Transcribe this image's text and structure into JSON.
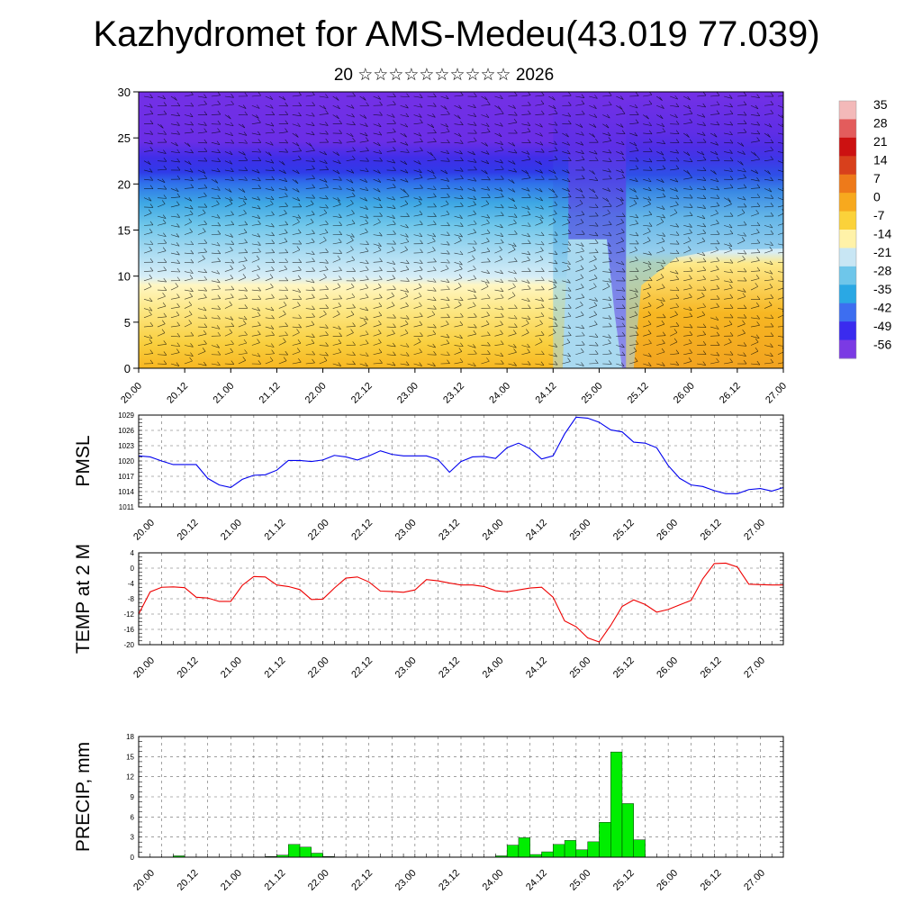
{
  "title": "Kazhydromet for AMS-Medeu(43.019 77.039)",
  "subtitle": "20 ☆☆☆☆☆☆☆☆☆☆ 2026",
  "time_labels": [
    "20.00",
    "20.12",
    "21.00",
    "21.12",
    "22.00",
    "22.12",
    "23.00",
    "23.12",
    "24.00",
    "24.12",
    "25.00",
    "25.12",
    "26.00",
    "26.12",
    "27.00"
  ],
  "colorbar": {
    "labels": [
      "35",
      "28",
      "21",
      "14",
      "7",
      "0",
      "-7",
      "-14",
      "-21",
      "-28",
      "-35",
      "-42",
      "-49",
      "-56"
    ],
    "colors": [
      "#f3b9b9",
      "#e35c5c",
      "#cc1111",
      "#d8401c",
      "#ee7a1a",
      "#f7a91e",
      "#fbd23a",
      "#fff2a8",
      "#c8e6f4",
      "#6ec6ea",
      "#2aa8e4",
      "#3d6ef0",
      "#3a2bef",
      "#7b3ae4"
    ]
  },
  "chart_data": [
    {
      "type": "heatmap",
      "name": "vertical cross-section",
      "ylim": [
        0,
        30
      ],
      "yticks": [
        0,
        5,
        10,
        15,
        20,
        25,
        30
      ],
      "x_range_hours": [
        0,
        168
      ],
      "legend": "right",
      "bands": [
        {
          "level": "0-9 (hours 0-112)",
          "value": 0
        },
        {
          "level": "9-12",
          "value": -14
        },
        {
          "level": "12-16",
          "value": -21
        },
        {
          "level": "16-20",
          "value": -35
        },
        {
          "level": "20-24",
          "value": -49
        },
        {
          "level": "24-30",
          "value": -56
        }
      ]
    },
    {
      "type": "line",
      "ylabel": "PMSL",
      "ylim": [
        1011,
        1029
      ],
      "yticks": [
        1011,
        1014,
        1017,
        1020,
        1023,
        1026,
        1029
      ],
      "color": "#0000ee",
      "step_hours": 3,
      "values": [
        1021,
        1020.8,
        1020,
        1019.3,
        1019.3,
        1019.3,
        1016.6,
        1015.3,
        1014.8,
        1016.4,
        1017.2,
        1017.3,
        1018.2,
        1020.1,
        1020.1,
        1019.9,
        1020.2,
        1021.1,
        1020.8,
        1020.2,
        1021,
        1022,
        1021.3,
        1021,
        1021,
        1021,
        1020.3,
        1017.8,
        1019.9,
        1020.8,
        1020.9,
        1020.5,
        1022.6,
        1023.5,
        1022.4,
        1020.4,
        1021,
        1025.3,
        1028.6,
        1028.4,
        1027.6,
        1026.1,
        1025.7,
        1023.7,
        1023.5,
        1022.6,
        1019.1,
        1016.6,
        1015.3,
        1015,
        1014.2,
        1013.6,
        1013.6,
        1014.4,
        1014.6,
        1014.1,
        1014.8
      ]
    },
    {
      "type": "line",
      "ylabel": "TEMP at 2 M",
      "ylim": [
        -20,
        4
      ],
      "yticks": [
        -20,
        -16,
        -12,
        -8,
        -4,
        0,
        4
      ],
      "color": "#ee0000",
      "step_hours": 3,
      "values": [
        -12,
        -6.2,
        -5,
        -4.9,
        -5.1,
        -7.6,
        -7.8,
        -8.7,
        -8.7,
        -4.5,
        -2.2,
        -2.3,
        -4.4,
        -4.8,
        -5.6,
        -8.2,
        -8.1,
        -5.2,
        -2.6,
        -2.3,
        -3.6,
        -6,
        -6.1,
        -6.3,
        -5.7,
        -3,
        -3.3,
        -3.9,
        -4.4,
        -4.4,
        -4.8,
        -5.9,
        -6.2,
        -5.7,
        -5.2,
        -5,
        -7.6,
        -13.8,
        -15.3,
        -18.2,
        -19.3,
        -15,
        -10,
        -8.3,
        -9.5,
        -11.5,
        -10.8,
        -9.6,
        -8.4,
        -2.8,
        1.2,
        1.3,
        0.3,
        -4.2,
        -4.3,
        -4.4,
        -4.4
      ]
    },
    {
      "type": "bar",
      "ylabel": "PRECIP, mm",
      "ylim": [
        0,
        18
      ],
      "yticks": [
        0,
        3,
        6,
        9,
        12,
        15,
        18
      ],
      "color": "#00ee00",
      "step_hours": 3,
      "values": [
        0,
        0,
        0,
        0.2,
        0,
        0,
        0,
        0,
        0,
        0,
        0,
        0.1,
        0.3,
        1.9,
        1.5,
        0.6,
        0.1,
        0,
        0,
        0,
        0,
        0,
        0,
        0,
        0,
        0,
        0,
        0,
        0,
        0,
        0,
        0.2,
        1.8,
        2.9,
        0.4,
        0.8,
        1.9,
        2.5,
        1.1,
        2.3,
        5.2,
        15.7,
        8,
        2.6,
        0,
        0,
        0,
        0,
        0,
        0,
        0,
        0,
        0,
        0,
        0,
        0,
        0
      ]
    }
  ]
}
